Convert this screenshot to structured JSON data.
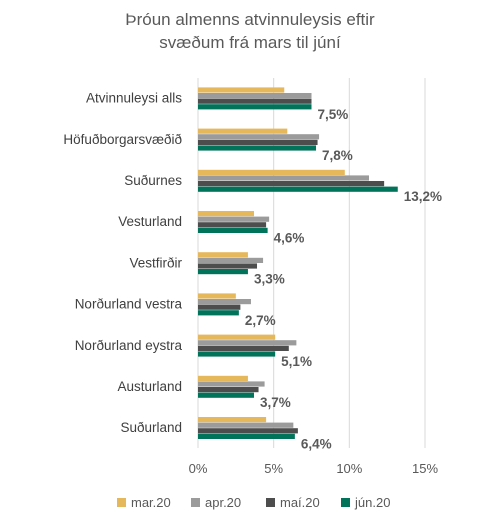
{
  "chart_data": {
    "type": "bar",
    "orientation": "horizontal",
    "title": [
      "Þróun almenns atvinnuleysis eftir",
      "svæðum frá mars til júní"
    ],
    "categories": [
      "Atvinnuleysi alls",
      "Höfuðborgarsvæðið",
      "Suðurnes",
      "Vesturland",
      "Vestfirðir",
      "Norðurland vestra",
      "Norðurland eystra",
      "Austurland",
      "Suðurland"
    ],
    "series": [
      {
        "name": "mar.20",
        "color": "#E6B85C",
        "values": [
          5.7,
          5.9,
          9.7,
          3.7,
          3.3,
          2.5,
          5.1,
          3.3,
          4.5
        ]
      },
      {
        "name": "apr.20",
        "color": "#9B9B9B",
        "values": [
          7.5,
          8.0,
          11.3,
          4.7,
          4.3,
          3.5,
          6.5,
          4.4,
          6.3
        ]
      },
      {
        "name": "maí.20",
        "color": "#4D4D4D",
        "values": [
          7.5,
          7.9,
          12.3,
          4.5,
          3.9,
          2.8,
          6.0,
          4.0,
          6.6
        ]
      },
      {
        "name": "jún.20",
        "color": "#00735A",
        "values": [
          7.5,
          7.8,
          13.2,
          4.6,
          3.3,
          2.7,
          5.1,
          3.7,
          6.4
        ]
      }
    ],
    "data_labels": [
      "7,5%",
      "7,8%",
      "13,2%",
      "4,6%",
      "3,3%",
      "2,7%",
      "5,1%",
      "3,7%",
      "6,4%"
    ],
    "x_ticks": [
      "0%",
      "5%",
      "10%",
      "15%"
    ],
    "xlim": [
      0,
      15
    ],
    "grid": "vertical",
    "legend_position": "bottom"
  }
}
